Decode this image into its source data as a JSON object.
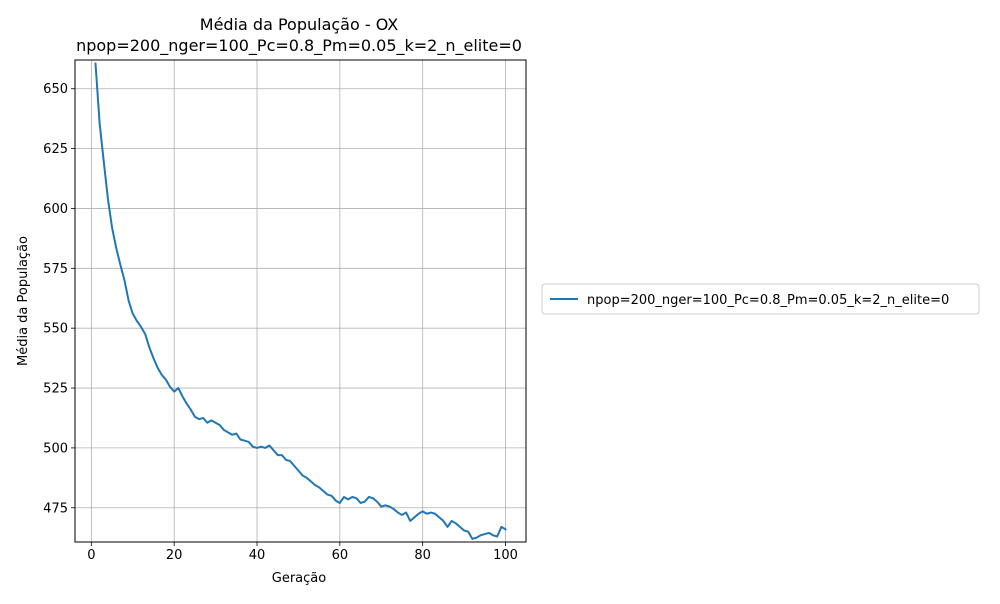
{
  "chart_data": {
    "type": "line",
    "title": "Média da População - OX",
    "subtitle": "npop=200_nger=100_Pc=0.8_Pm=0.05_k=2_n_elite=0",
    "xlabel": "Geração",
    "ylabel": "Média da População",
    "xlim": [
      -3.95,
      104.95
    ],
    "ylim": [
      460.7,
      662.0
    ],
    "xticks": [
      0,
      20,
      40,
      60,
      80,
      100
    ],
    "yticks": [
      475,
      500,
      525,
      550,
      575,
      600,
      625,
      650
    ],
    "grid": true,
    "legend_position": "right",
    "series": [
      {
        "name": "npop=200_nger=100_Pc=0.8_Pm=0.05_k=2_n_elite=0",
        "color": "#1f77b4",
        "x": [
          1,
          2,
          3,
          4,
          5,
          6,
          7,
          8,
          9,
          10,
          11,
          12,
          13,
          14,
          15,
          16,
          17,
          18,
          19,
          20,
          21,
          22,
          23,
          24,
          25,
          26,
          27,
          28,
          29,
          30,
          31,
          32,
          33,
          34,
          35,
          36,
          37,
          38,
          39,
          40,
          41,
          42,
          43,
          44,
          45,
          46,
          47,
          48,
          49,
          50,
          51,
          52,
          53,
          54,
          55,
          56,
          57,
          58,
          59,
          60,
          61,
          62,
          63,
          64,
          65,
          66,
          67,
          68,
          69,
          70,
          71,
          72,
          73,
          74,
          75,
          76,
          77,
          78,
          79,
          80,
          81,
          82,
          83,
          84,
          85,
          86,
          87,
          88,
          89,
          90,
          91,
          92,
          93,
          94,
          95,
          96,
          97,
          98,
          99,
          100
        ],
        "values": [
          660.5,
          635.5,
          619.5,
          604.0,
          592.0,
          583.5,
          576.5,
          570.0,
          561.5,
          556.0,
          553.0,
          550.5,
          547.5,
          542.0,
          537.5,
          533.5,
          530.5,
          528.5,
          525.5,
          523.5,
          525.0,
          521.5,
          518.5,
          516.0,
          513.0,
          512.0,
          512.5,
          510.5,
          511.5,
          510.5,
          509.5,
          507.5,
          506.5,
          505.5,
          506.0,
          503.5,
          503.0,
          502.5,
          500.5,
          500.0,
          500.5,
          500.0,
          501.0,
          499.0,
          497.0,
          497.0,
          495.0,
          494.5,
          492.5,
          490.5,
          488.5,
          487.5,
          486.0,
          484.5,
          483.5,
          482.0,
          480.5,
          480.0,
          478.0,
          477.0,
          479.5,
          478.5,
          479.5,
          479.0,
          477.0,
          477.5,
          479.5,
          479.0,
          477.5,
          475.5,
          476.0,
          475.5,
          474.5,
          473.0,
          472.0,
          473.0,
          469.5,
          471.0,
          472.5,
          473.5,
          472.5,
          473.0,
          472.5,
          471.0,
          469.5,
          467.0,
          469.5,
          468.5,
          467.0,
          465.5,
          465.0,
          462.0,
          462.5,
          463.5,
          464.0,
          464.5,
          463.5,
          463.0,
          467.0,
          466.0
        ]
      }
    ]
  }
}
